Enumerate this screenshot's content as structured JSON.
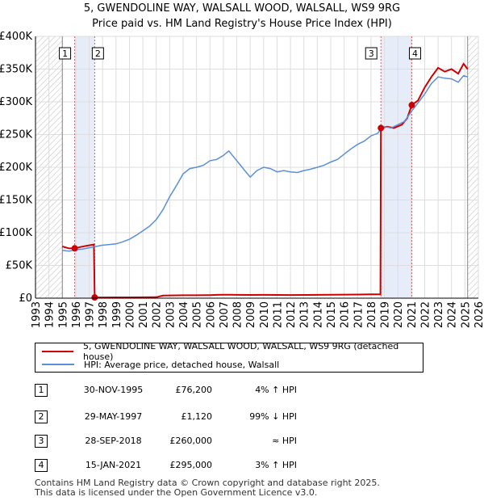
{
  "header": {
    "title": "5, GWENDOLINE WAY, WALSALL WOOD, WALSALL, WS9 9RG",
    "subtitle": "Price paid vs. HM Land Registry's House Price Index (HPI)"
  },
  "chart_data": {
    "type": "line",
    "title": "5, GWENDOLINE WAY, WALSALL WOOD, WALSALL, WS9 9RG",
    "subtitle": "Price paid vs. HM Land Registry's House Price Index (HPI)",
    "xlim": [
      1993,
      2026
    ],
    "ylim": [
      0,
      400000
    ],
    "x_ticks": [
      "1993",
      "1994",
      "1995",
      "1996",
      "1997",
      "1998",
      "1999",
      "2000",
      "2001",
      "2002",
      "2003",
      "2004",
      "2005",
      "2006",
      "2007",
      "2008",
      "2009",
      "2010",
      "2011",
      "2012",
      "2013",
      "2014",
      "2015",
      "2016",
      "2017",
      "2018",
      "2019",
      "2020",
      "2021",
      "2022",
      "2023",
      "2024",
      "2025",
      "2026"
    ],
    "y_ticks": [
      {
        "value": 0,
        "label": "£0"
      },
      {
        "value": 50000,
        "label": "£50K"
      },
      {
        "value": 100000,
        "label": "£100K"
      },
      {
        "value": 150000,
        "label": "£150K"
      },
      {
        "value": 200000,
        "label": "£200K"
      },
      {
        "value": 250000,
        "label": "£250K"
      },
      {
        "value": 300000,
        "label": "£300K"
      },
      {
        "value": 350000,
        "label": "£350K"
      },
      {
        "value": 400000,
        "label": "£400K"
      }
    ],
    "grid": true,
    "hatched_ranges": [
      [
        1993,
        1995.0
      ],
      [
        2025.2,
        2026
      ]
    ],
    "shaded_ranges": [
      [
        1995.92,
        1997.41
      ],
      [
        2018.74,
        2021.04
      ]
    ],
    "series": [
      {
        "name": "5, GWENDOLINE WAY, WALSALL WOOD, WALSALL, WS9 9RG (detached house)",
        "color": "#cc0000",
        "points": [
          [
            1995.0,
            79000
          ],
          [
            1995.5,
            76000
          ],
          [
            1995.92,
            76200
          ],
          [
            1996.3,
            78000
          ],
          [
            1996.8,
            80000
          ],
          [
            1997.35,
            82000
          ],
          [
            1997.41,
            1120
          ],
          [
            1998.0,
            1150
          ],
          [
            1999.0,
            1180
          ],
          [
            2000.0,
            1230
          ],
          [
            2001.0,
            1300
          ],
          [
            2002.0,
            1500
          ],
          [
            2002.5,
            4000
          ],
          [
            2003.0,
            4200
          ],
          [
            2004.0,
            4400
          ],
          [
            2005.0,
            4500
          ],
          [
            2006.0,
            4700
          ],
          [
            2006.5,
            5000
          ],
          [
            2007.0,
            5200
          ],
          [
            2007.5,
            5300
          ],
          [
            2008.0,
            5100
          ],
          [
            2009.0,
            4900
          ],
          [
            2010.0,
            5000
          ],
          [
            2011.0,
            4900
          ],
          [
            2012.0,
            4800
          ],
          [
            2013.0,
            4900
          ],
          [
            2014.0,
            5000
          ],
          [
            2015.0,
            5200
          ],
          [
            2016.0,
            5400
          ],
          [
            2017.0,
            5600
          ],
          [
            2018.0,
            5800
          ],
          [
            2018.7,
            5900
          ],
          [
            2018.74,
            260000
          ],
          [
            2019.2,
            262000
          ],
          [
            2019.7,
            260000
          ],
          [
            2020.3,
            265000
          ],
          [
            2020.7,
            275000
          ],
          [
            2021.04,
            295000
          ],
          [
            2021.5,
            302000
          ],
          [
            2022.0,
            322000
          ],
          [
            2022.5,
            338000
          ],
          [
            2023.0,
            352000
          ],
          [
            2023.5,
            346000
          ],
          [
            2024.0,
            350000
          ],
          [
            2024.5,
            343000
          ],
          [
            2024.9,
            358000
          ],
          [
            2025.2,
            350000
          ]
        ]
      },
      {
        "name": "HPI: Average price, detached house, Walsall",
        "color": "#5b8fd6",
        "points": [
          [
            1995.0,
            73000
          ],
          [
            1995.5,
            72000
          ],
          [
            1996.0,
            74000
          ],
          [
            1996.5,
            75000
          ],
          [
            1997.0,
            77000
          ],
          [
            1997.5,
            79000
          ],
          [
            1998.0,
            81000
          ],
          [
            1998.5,
            82000
          ],
          [
            1999.0,
            83000
          ],
          [
            1999.5,
            86000
          ],
          [
            2000.0,
            90000
          ],
          [
            2000.5,
            96000
          ],
          [
            2001.0,
            103000
          ],
          [
            2001.5,
            110000
          ],
          [
            2002.0,
            120000
          ],
          [
            2002.5,
            135000
          ],
          [
            2003.0,
            155000
          ],
          [
            2003.5,
            172000
          ],
          [
            2004.0,
            190000
          ],
          [
            2004.5,
            198000
          ],
          [
            2005.0,
            200000
          ],
          [
            2005.5,
            203000
          ],
          [
            2006.0,
            210000
          ],
          [
            2006.5,
            212000
          ],
          [
            2007.0,
            218000
          ],
          [
            2007.4,
            225000
          ],
          [
            2007.8,
            215000
          ],
          [
            2008.2,
            205000
          ],
          [
            2008.6,
            195000
          ],
          [
            2009.0,
            185000
          ],
          [
            2009.5,
            195000
          ],
          [
            2010.0,
            200000
          ],
          [
            2010.5,
            198000
          ],
          [
            2011.0,
            193000
          ],
          [
            2011.5,
            195000
          ],
          [
            2012.0,
            193000
          ],
          [
            2012.5,
            192000
          ],
          [
            2013.0,
            195000
          ],
          [
            2013.5,
            197000
          ],
          [
            2014.0,
            200000
          ],
          [
            2014.5,
            203000
          ],
          [
            2015.0,
            208000
          ],
          [
            2015.5,
            212000
          ],
          [
            2016.0,
            220000
          ],
          [
            2016.5,
            228000
          ],
          [
            2017.0,
            235000
          ],
          [
            2017.5,
            240000
          ],
          [
            2018.0,
            248000
          ],
          [
            2018.5,
            252000
          ],
          [
            2018.74,
            258000
          ],
          [
            2019.0,
            262000
          ],
          [
            2019.5,
            260000
          ],
          [
            2020.0,
            265000
          ],
          [
            2020.5,
            270000
          ],
          [
            2021.0,
            285000
          ],
          [
            2021.5,
            298000
          ],
          [
            2022.0,
            312000
          ],
          [
            2022.5,
            328000
          ],
          [
            2023.0,
            338000
          ],
          [
            2023.5,
            336000
          ],
          [
            2024.0,
            335000
          ],
          [
            2024.5,
            330000
          ],
          [
            2024.9,
            340000
          ],
          [
            2025.2,
            338000
          ]
        ]
      }
    ],
    "sales": [
      {
        "label": "1",
        "x": 1995.92,
        "price": 76200,
        "marker": true
      },
      {
        "label": "2",
        "x": 1997.41,
        "price": 1120,
        "marker": true
      },
      {
        "label": "3",
        "x": 2018.74,
        "price": 260000,
        "marker": true
      },
      {
        "label": "4",
        "x": 2021.04,
        "price": 295000,
        "marker": true
      }
    ]
  },
  "legend": {
    "items": [
      {
        "label": "5, GWENDOLINE WAY, WALSALL WOOD, WALSALL, WS9 9RG (detached house)",
        "color": "#cc0000"
      },
      {
        "label": "HPI: Average price, detached house, Walsall",
        "color": "#5b8fd6"
      }
    ]
  },
  "sales_table": {
    "rows": [
      {
        "num": "1",
        "date": "30-NOV-1995",
        "price": "£76,200",
        "hpi": "4% ↑ HPI"
      },
      {
        "num": "2",
        "date": "29-MAY-1997",
        "price": "£1,120",
        "hpi": "99% ↓ HPI"
      },
      {
        "num": "3",
        "date": "28-SEP-2018",
        "price": "£260,000",
        "hpi": "≈ HPI"
      },
      {
        "num": "4",
        "date": "15-JAN-2021",
        "price": "£295,000",
        "hpi": "3% ↑ HPI"
      }
    ]
  },
  "footer": {
    "line1": "Contains HM Land Registry data © Crown copyright and database right 2025.",
    "line2": "This data is licensed under the Open Government Licence v3.0."
  }
}
